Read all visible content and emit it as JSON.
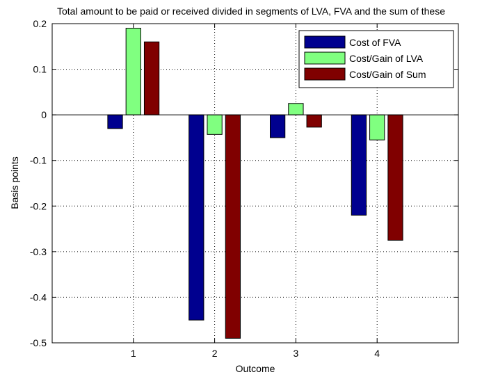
{
  "chart_data": {
    "type": "bar",
    "title": "Total amount to be paid or received divided in segments of LVA, FVA and the sum of these",
    "xlabel": "Outcome",
    "ylabel": "Basis points",
    "categories": [
      "1",
      "2",
      "3",
      "4"
    ],
    "ylim": [
      -0.5,
      0.2
    ],
    "yticks": [
      -0.5,
      -0.4,
      -0.3,
      -0.2,
      -0.1,
      0,
      0.1,
      0.2
    ],
    "ytick_labels": [
      "-0.5",
      "-0.4",
      "-0.3",
      "-0.2",
      "-0.1",
      "0",
      "0.1",
      "0.2"
    ],
    "grid": true,
    "legend_position": "top-right",
    "series": [
      {
        "name": "Cost of FVA",
        "color": "#00008f",
        "values": [
          -0.03,
          -0.45,
          -0.05,
          -0.22
        ]
      },
      {
        "name": "Cost/Gain of LVA",
        "color": "#80ff80",
        "values": [
          0.19,
          -0.043,
          0.025,
          -0.055
        ]
      },
      {
        "name": "Cost/Gain of Sum",
        "color": "#800000",
        "values": [
          0.16,
          -0.49,
          -0.027,
          -0.275
        ]
      }
    ]
  }
}
